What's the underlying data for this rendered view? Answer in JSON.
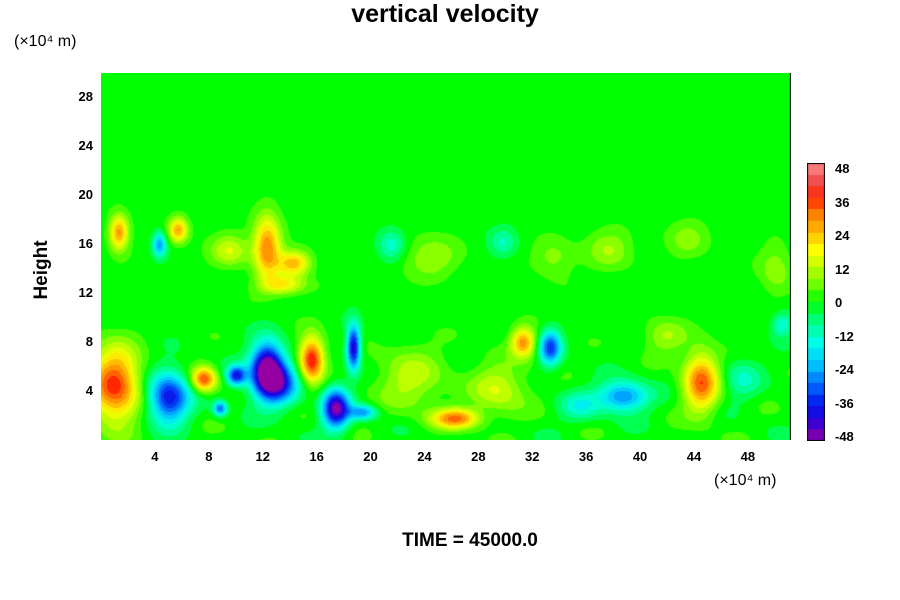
{
  "chart_data": {
    "type": "heatmap",
    "title": "vertical velocity",
    "ylabel": "Height",
    "xunit": "(×10⁴ m)",
    "yunit": "(×10⁴ m)",
    "footer": "TIME = 45000.0",
    "xlim": [
      0,
      51.2
    ],
    "ylim": [
      0,
      30
    ],
    "xticks": [
      "4",
      "8",
      "12",
      "16",
      "20",
      "24",
      "28",
      "32",
      "36",
      "40",
      "44",
      "48"
    ],
    "yticks": [
      "4",
      "8",
      "12",
      "16",
      "20",
      "24",
      "28"
    ],
    "colorbar": {
      "vmin": -48,
      "vmax": 48,
      "ticks": [
        "48",
        "36",
        "24",
        "12",
        "0",
        "-12",
        "-24",
        "-36",
        "-48"
      ]
    },
    "features": [
      {
        "x": 1.0,
        "y": 4.5,
        "value": 36,
        "sx": 1.8,
        "sy": 3.0
      },
      {
        "x": 5.0,
        "y": 3.5,
        "value": -38,
        "sx": 1.5,
        "sy": 2.0
      },
      {
        "x": 7.6,
        "y": 5.0,
        "value": 34,
        "sx": 0.9,
        "sy": 1.0
      },
      {
        "x": 8.8,
        "y": 2.6,
        "value": -28,
        "sx": 0.5,
        "sy": 0.6
      },
      {
        "x": 12.3,
        "y": 6.0,
        "value": -48,
        "sx": 1.2,
        "sy": 2.0
      },
      {
        "x": 10.0,
        "y": 5.3,
        "value": -36,
        "sx": 0.7,
        "sy": 0.8
      },
      {
        "x": 13.0,
        "y": 4.6,
        "value": -34,
        "sx": 1.6,
        "sy": 1.7
      },
      {
        "x": 15.6,
        "y": 6.6,
        "value": 40,
        "sx": 0.9,
        "sy": 1.8
      },
      {
        "x": 17.4,
        "y": 2.6,
        "value": -46,
        "sx": 1.0,
        "sy": 1.6
      },
      {
        "x": 18.7,
        "y": 7.6,
        "value": -42,
        "sx": 0.5,
        "sy": 1.8
      },
      {
        "x": 19.4,
        "y": 2.3,
        "value": -24,
        "sx": 1.0,
        "sy": 0.6
      },
      {
        "x": 26.3,
        "y": 1.8,
        "value": 30,
        "sx": 1.7,
        "sy": 0.8
      },
      {
        "x": 31.3,
        "y": 8.0,
        "value": 28,
        "sx": 0.9,
        "sy": 1.2
      },
      {
        "x": 33.3,
        "y": 7.6,
        "value": -32,
        "sx": 0.8,
        "sy": 1.4
      },
      {
        "x": 38.7,
        "y": 3.6,
        "value": -28,
        "sx": 1.8,
        "sy": 1.2
      },
      {
        "x": 44.5,
        "y": 4.8,
        "value": 32,
        "sx": 1.3,
        "sy": 2.4
      },
      {
        "x": 1.3,
        "y": 17.0,
        "value": 28,
        "sx": 0.7,
        "sy": 1.4
      },
      {
        "x": 4.3,
        "y": 16.0,
        "value": -24,
        "sx": 0.5,
        "sy": 1.0
      },
      {
        "x": 5.7,
        "y": 17.2,
        "value": 26,
        "sx": 0.7,
        "sy": 1.0
      },
      {
        "x": 12.3,
        "y": 15.8,
        "value": 30,
        "sx": 1.0,
        "sy": 2.5
      },
      {
        "x": 14.3,
        "y": 14.5,
        "value": 24,
        "sx": 1.2,
        "sy": 1.0
      },
      {
        "x": 13.5,
        "y": 12.7,
        "value": 18,
        "sx": 1.6,
        "sy": 0.8
      },
      {
        "x": 9.5,
        "y": 15.5,
        "value": 14,
        "sx": 1.4,
        "sy": 1.3
      },
      {
        "x": 21.5,
        "y": 16.0,
        "value": -12,
        "sx": 1.0,
        "sy": 1.3
      },
      {
        "x": 24.5,
        "y": 15.0,
        "value": 10,
        "sx": 2.0,
        "sy": 1.6
      },
      {
        "x": 29.8,
        "y": 16.2,
        "value": -10,
        "sx": 1.0,
        "sy": 1.2
      },
      {
        "x": 33.5,
        "y": 15.0,
        "value": 8,
        "sx": 1.5,
        "sy": 1.5
      },
      {
        "x": 37.7,
        "y": 15.6,
        "value": 10,
        "sx": 1.6,
        "sy": 1.6
      },
      {
        "x": 43.5,
        "y": 16.5,
        "value": 8,
        "sx": 1.5,
        "sy": 1.5
      },
      {
        "x": 50.0,
        "y": 14.0,
        "value": 9,
        "sx": 1.2,
        "sy": 2.0
      },
      {
        "x": 23.0,
        "y": 5.0,
        "value": 12,
        "sx": 2.5,
        "sy": 2.5
      },
      {
        "x": 29.5,
        "y": 4.2,
        "value": 14,
        "sx": 2.0,
        "sy": 2.0
      },
      {
        "x": 35.5,
        "y": 2.8,
        "value": -12,
        "sx": 1.5,
        "sy": 1.2
      },
      {
        "x": 47.5,
        "y": 5.0,
        "value": -10,
        "sx": 1.4,
        "sy": 1.6
      },
      {
        "x": 50.5,
        "y": 9.5,
        "value": -14,
        "sx": 0.8,
        "sy": 1.0
      },
      {
        "x": 41.8,
        "y": 8.5,
        "value": 10,
        "sx": 1.5,
        "sy": 1.4
      }
    ]
  }
}
